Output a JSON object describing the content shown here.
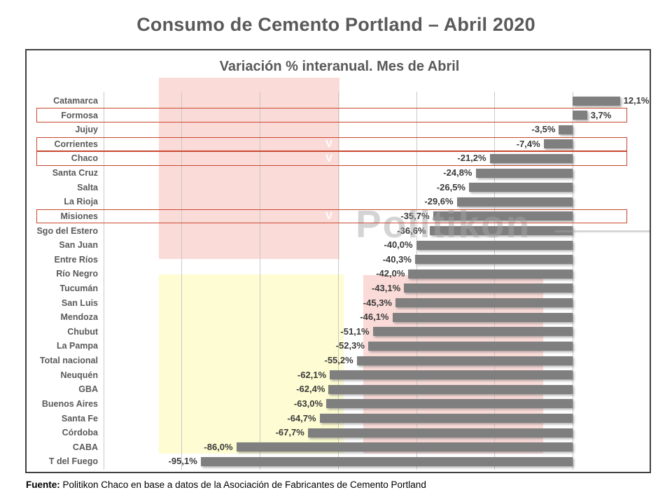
{
  "page": {
    "title": "Consumo de Cemento Portland – Abril 2020",
    "watermark": "Politikon",
    "footer": {
      "label": "Fuente:",
      "text": " Politikon Chaco en base a datos de la Asociación de Fabricantes de Cemento Portland"
    }
  },
  "chart_data": {
    "type": "bar",
    "orientation": "horizontal",
    "title": "Variación % interanual. Mes de Abril",
    "xlabel": "",
    "ylabel": "",
    "xlim": [
      -120,
      20
    ],
    "gridline_step": 20,
    "grid": true,
    "legend": false,
    "categories": [
      "Catamarca",
      "Formosa",
      "Jujuy",
      "Corrientes",
      "Chaco",
      "Santa Cruz",
      "Salta",
      "La Rioja",
      "Misiones",
      "Sgo del Estero",
      "San Juan",
      "Entre Ríos",
      "Río Negro",
      "Tucumán",
      "San Luis",
      "Mendoza",
      "Chubut",
      "La Pampa",
      "Total nacional",
      "Neuquén",
      "GBA",
      "Buenos Aires",
      "Santa Fe",
      "Córdoba",
      "CABA",
      "T del Fuego"
    ],
    "values": [
      12.1,
      3.7,
      -3.5,
      -7.4,
      -21.2,
      -24.8,
      -26.5,
      -29.6,
      -35.7,
      -36.6,
      -40.0,
      -40.3,
      -42.0,
      -43.1,
      -45.3,
      -46.1,
      -51.1,
      -52.3,
      -55.2,
      -62.1,
      -62.4,
      -63.0,
      -64.7,
      -67.7,
      -86.0,
      -95.1
    ],
    "value_labels": [
      "12,1%",
      "3,7%",
      "-3,5%",
      "-7,4%",
      "-21,2%",
      "-24,8%",
      "-26,5%",
      "-29,6%",
      "-35,7%",
      "-36,6%",
      "-40,0%",
      "-40,3%",
      "-42,0%",
      "-43,1%",
      "-45,3%",
      "-46,1%",
      "-51,1%",
      "-52,3%",
      "-55,2%",
      "-62,1%",
      "-62,4%",
      "-63,0%",
      "-64,7%",
      "-67,7%",
      "-86,0%",
      "-95,1%"
    ],
    "outlined_rows": [
      "Formosa",
      "Corrientes",
      "Chaco",
      "Misiones"
    ],
    "check_marked_rows": [
      "Corrientes",
      "Chaco",
      "Misiones"
    ],
    "check_glyph": "V",
    "colors": {
      "bar": "#7f7f7f",
      "outline_box": "#c9472f",
      "band_pink": "#fadbd8",
      "band_yellow": "#fdfcd2",
      "grid": "#c9c9c9",
      "title": "#595959",
      "value_label": "#3a3a3a"
    }
  }
}
